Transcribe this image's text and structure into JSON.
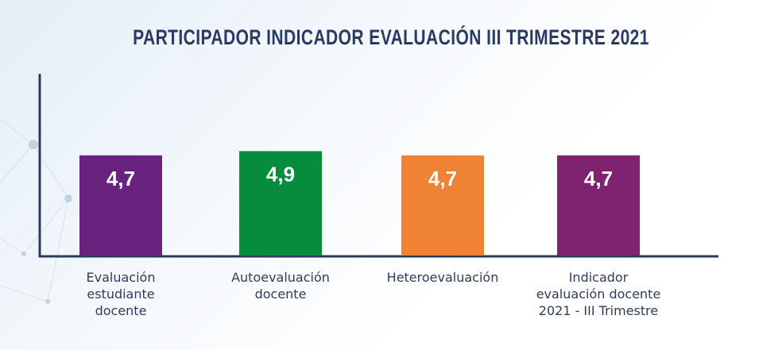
{
  "chart_data": {
    "type": "bar",
    "title": "PARTICIPADOR INDICADOR EVALUACIÓN III TRIMESTRE 2021",
    "categories": [
      [
        "Evaluación",
        "estudiante",
        "docente"
      ],
      [
        "Autoevaluación",
        "docente"
      ],
      [
        "Heteroevaluación"
      ],
      [
        "Indicador",
        "evaluación docente",
        "2021 - III Trimestre"
      ]
    ],
    "values": [
      4.7,
      4.9,
      4.7,
      4.7
    ],
    "value_labels": [
      "4,7",
      "4,9",
      "4,7",
      "4,7"
    ],
    "colors": [
      "#68237f",
      "#068c3c",
      "#ef8233",
      "#7f2370"
    ],
    "axis_color": "#2d3a5e",
    "xlabel": "",
    "ylabel": "",
    "grid": false,
    "legend": "none"
  }
}
